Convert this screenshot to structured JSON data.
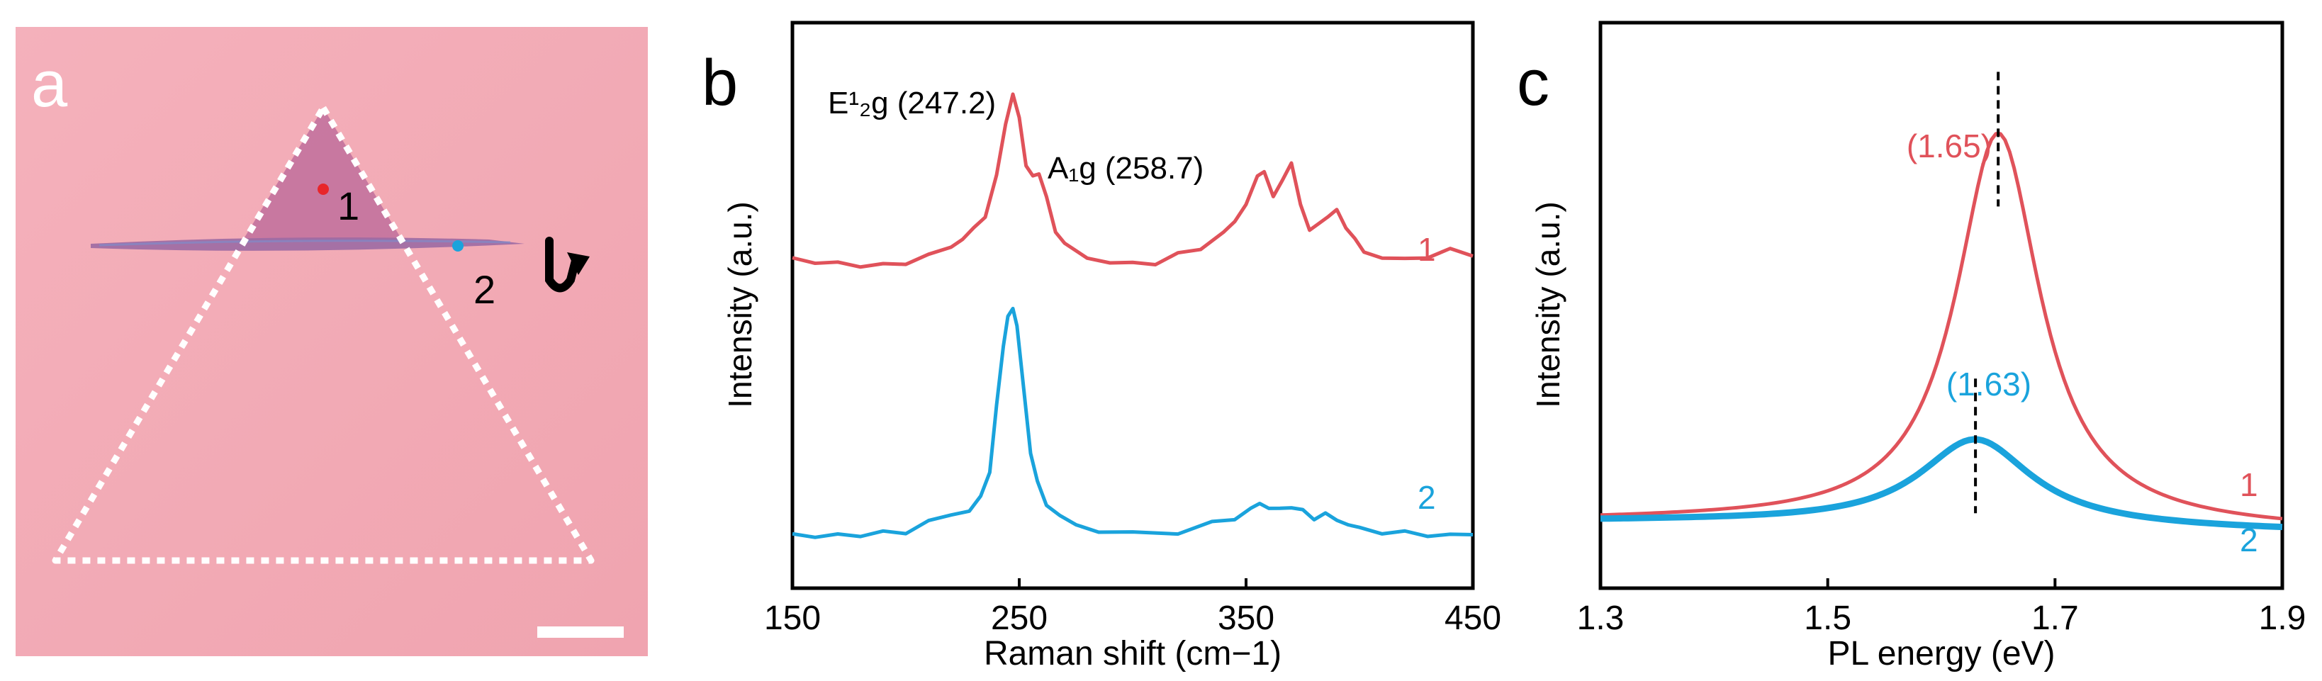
{
  "panels": {
    "a": {
      "label": "a",
      "points": [
        {
          "label": "1",
          "color": "#e8262b"
        },
        {
          "label": "2",
          "color": "#1aa3dc"
        }
      ],
      "colors": {
        "substrate": "#f2a9b4",
        "flake": "#c06f9c",
        "ribbon": "#9c6aa3",
        "outline": "#ffffff"
      }
    },
    "b": {
      "label": "b"
    },
    "c": {
      "label": "c"
    }
  },
  "chart_data": [
    {
      "type": "line",
      "panel": "b",
      "xlabel": "Raman shift (cm−1)",
      "ylabel": "Intensity (a.u.)",
      "xlim": [
        150,
        450
      ],
      "xticks": [
        150,
        250,
        350,
        450
      ],
      "annotations": [
        {
          "text": "E¹₂g (247.2)",
          "x": 247.2
        },
        {
          "text": "A₁g (258.7)",
          "x": 258.7
        }
      ],
      "series": [
        {
          "name": "1",
          "color": "#e0525a",
          "x": [
            150,
            160,
            170,
            180,
            190,
            200,
            210,
            220,
            225,
            230,
            235,
            240,
            244,
            247.2,
            250,
            253,
            256,
            258.7,
            262,
            266,
            270,
            280,
            290,
            300,
            310,
            320,
            330,
            340,
            345,
            350,
            355,
            358,
            362,
            366,
            370,
            374,
            378,
            382,
            386,
            390,
            394,
            398,
            402,
            410,
            420,
            430,
            440,
            450
          ],
          "y": [
            0.25,
            0.23,
            0.22,
            0.22,
            0.21,
            0.23,
            0.26,
            0.3,
            0.34,
            0.38,
            0.45,
            0.62,
            0.88,
            1.0,
            0.9,
            0.68,
            0.62,
            0.65,
            0.52,
            0.38,
            0.31,
            0.25,
            0.23,
            0.22,
            0.23,
            0.26,
            0.3,
            0.36,
            0.42,
            0.5,
            0.62,
            0.66,
            0.52,
            0.62,
            0.68,
            0.5,
            0.38,
            0.4,
            0.45,
            0.46,
            0.4,
            0.33,
            0.28,
            0.25,
            0.24,
            0.26,
            0.28,
            0.27
          ]
        },
        {
          "name": "2",
          "color": "#1aa3dc",
          "x": [
            150,
            160,
            170,
            180,
            190,
            200,
            210,
            220,
            228,
            233,
            237,
            240,
            243,
            245,
            247.2,
            249,
            252,
            255,
            258,
            262,
            268,
            275,
            285,
            300,
            320,
            335,
            345,
            352,
            356,
            360,
            365,
            370,
            375,
            380,
            385,
            390,
            395,
            400,
            410,
            420,
            430,
            440,
            450
          ],
          "y": [
            0.05,
            0.04,
            0.04,
            0.05,
            0.05,
            0.06,
            0.1,
            0.13,
            0.15,
            0.2,
            0.32,
            0.58,
            0.85,
            0.96,
            1.0,
            0.93,
            0.65,
            0.4,
            0.26,
            0.18,
            0.12,
            0.09,
            0.06,
            0.05,
            0.06,
            0.09,
            0.12,
            0.15,
            0.18,
            0.16,
            0.15,
            0.17,
            0.14,
            0.12,
            0.13,
            0.11,
            0.09,
            0.07,
            0.06,
            0.05,
            0.05,
            0.04,
            0.05
          ]
        }
      ]
    },
    {
      "type": "line",
      "panel": "c",
      "xlabel": "PL energy (eV)",
      "ylabel": "Intensity (a.u.)",
      "xlim": [
        1.3,
        1.9
      ],
      "xticks": [
        1.3,
        1.5,
        1.7,
        1.9
      ],
      "annotations": [
        {
          "text": "(1.65)",
          "x": 1.65,
          "color": "#e0525a"
        },
        {
          "text": "(1.63)",
          "x": 1.63,
          "color": "#1aa3dc"
        }
      ],
      "series": [
        {
          "name": "1",
          "color": "#e0525a",
          "peak_x": 1.65,
          "peak_height": 1.0,
          "width": 0.045,
          "baseline": 0.04
        },
        {
          "name": "2",
          "color": "#1aa3dc",
          "peak_x": 1.63,
          "peak_height": 0.22,
          "width": 0.06,
          "baseline": 0.04
        }
      ]
    }
  ]
}
